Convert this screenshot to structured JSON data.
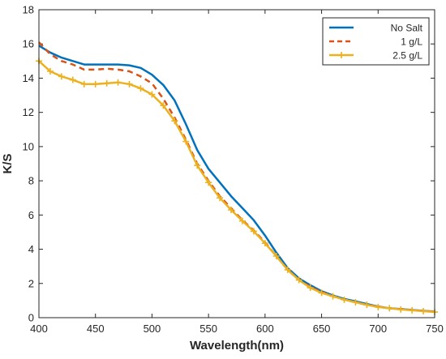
{
  "chart_data": {
    "type": "line",
    "xlabel": "Wavelength(nm)",
    "ylabel": "K/S",
    "xlim": [
      400,
      750
    ],
    "ylim": [
      0,
      18
    ],
    "xticks": [
      400,
      450,
      500,
      550,
      600,
      650,
      700,
      750
    ],
    "yticks": [
      0,
      2,
      4,
      6,
      8,
      10,
      12,
      14,
      16,
      18
    ],
    "grid": false,
    "legend_position": "top-right",
    "x": [
      400,
      410,
      420,
      430,
      440,
      450,
      460,
      470,
      480,
      490,
      500,
      510,
      520,
      530,
      540,
      550,
      560,
      570,
      580,
      590,
      600,
      610,
      620,
      630,
      640,
      650,
      660,
      670,
      680,
      690,
      700,
      710,
      720,
      730,
      740,
      750
    ],
    "series": [
      {
        "name": "No Salt",
        "color": "#0072BD",
        "dash": "solid",
        "marker": "none",
        "values": [
          15.9,
          15.5,
          15.2,
          15.0,
          14.8,
          14.8,
          14.8,
          14.8,
          14.75,
          14.6,
          14.2,
          13.6,
          12.7,
          11.3,
          9.8,
          8.7,
          7.9,
          7.1,
          6.4,
          5.7,
          4.8,
          3.8,
          2.9,
          2.3,
          1.9,
          1.55,
          1.3,
          1.1,
          0.95,
          0.8,
          0.65,
          0.55,
          0.5,
          0.45,
          0.4,
          0.35
        ]
      },
      {
        "name": "1 g/L",
        "color": "#D95319",
        "dash": "dashed",
        "marker": "none",
        "values": [
          16.1,
          15.4,
          15.0,
          14.8,
          14.5,
          14.5,
          14.55,
          14.5,
          14.4,
          14.1,
          13.7,
          12.8,
          11.7,
          10.4,
          9.0,
          8.0,
          7.1,
          6.4,
          5.7,
          5.1,
          4.4,
          3.6,
          2.8,
          2.2,
          1.8,
          1.5,
          1.25,
          1.05,
          0.9,
          0.75,
          0.65,
          0.55,
          0.5,
          0.45,
          0.4,
          0.35
        ]
      },
      {
        "name": "2.5 g/L",
        "color": "#EDB120",
        "dash": "solid",
        "marker": "plus",
        "values": [
          15.0,
          14.4,
          14.1,
          13.9,
          13.65,
          13.65,
          13.7,
          13.75,
          13.65,
          13.4,
          13.05,
          12.4,
          11.5,
          10.3,
          8.9,
          7.9,
          7.0,
          6.3,
          5.65,
          5.05,
          4.35,
          3.6,
          2.8,
          2.2,
          1.75,
          1.45,
          1.25,
          1.05,
          0.9,
          0.75,
          0.62,
          0.55,
          0.48,
          0.43,
          0.38,
          0.33
        ]
      }
    ]
  }
}
